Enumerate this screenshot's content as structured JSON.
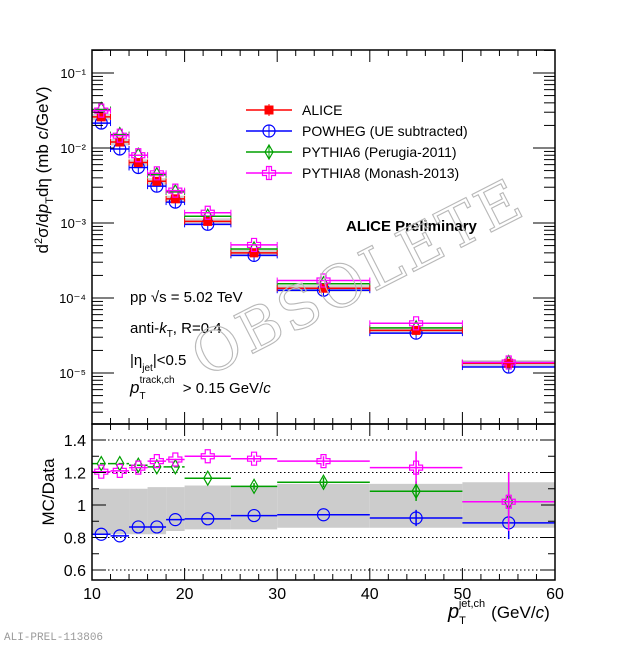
{
  "footer_id": "ALI-PREL-113806",
  "watermark": "OBSOLETE",
  "chart_data": [
    {
      "type": "scatter",
      "panel": "top",
      "ylabel": "d²σ/dp_T dη (mb c/GeV)",
      "yscale": "log",
      "ylim": [
        5e-06,
        0.12
      ],
      "xlim": [
        10,
        60
      ],
      "y_tick_labels": [
        "10⁻¹",
        "10⁻²",
        "10⁻³",
        "10⁻⁴",
        "10⁻⁵"
      ],
      "y_tick_values": [
        0.1,
        0.01,
        0.001,
        0.0001,
        1e-05
      ],
      "annotation_title": "ALICE Preliminary",
      "annotations": [
        "pp √s = 5.02 TeV",
        "anti-k_T, R=0.4",
        "|η_jet|<0.5",
        "p_T^track,ch > 0.15 GeV/c"
      ],
      "legend_position": "top-right",
      "bins": [
        [
          10,
          12
        ],
        [
          12,
          14
        ],
        [
          14,
          16
        ],
        [
          16,
          18
        ],
        [
          18,
          20
        ],
        [
          20,
          25
        ],
        [
          25,
          30
        ],
        [
          30,
          40
        ],
        [
          40,
          50
        ],
        [
          50,
          60
        ]
      ],
      "x": [
        11,
        13,
        15,
        17,
        19,
        22.5,
        27.5,
        35,
        45,
        55
      ],
      "series": [
        {
          "name": "ALICE",
          "color": "#ff0000",
          "marker": "filled-square",
          "values": [
            0.026,
            0.012,
            0.0064,
            0.0036,
            0.0021,
            0.00105,
            0.0004,
            0.000135,
            3.7e-05,
            1.35e-05
          ]
        },
        {
          "name": "POWHEG (UE subtracted)",
          "color": "#0000ff",
          "marker": "open-circle-plus",
          "values": [
            0.0215,
            0.0097,
            0.0055,
            0.0031,
            0.0019,
            0.00096,
            0.00037,
            0.000127,
            3.4e-05,
            1.2e-05
          ]
        },
        {
          "name": "PYTHIA6 (Perugia-2011)",
          "color": "#00a000",
          "marker": "open-diamond",
          "values": [
            0.0326,
            0.0151,
            0.008,
            0.0044,
            0.0026,
            0.00123,
            0.00045,
            0.000155,
            4e-05,
            1.38e-05
          ]
        },
        {
          "name": "PYTHIA8 (Monash-2013)",
          "color": "#ff00ff",
          "marker": "open-cross",
          "values": [
            0.0315,
            0.0146,
            0.008,
            0.0046,
            0.0027,
            0.00137,
            0.00051,
            0.000171,
            4.6e-05,
            1.38e-05
          ]
        }
      ]
    },
    {
      "type": "scatter",
      "panel": "bottom",
      "ylabel": "MC/Data",
      "xlabel": "p_T^jet,ch (GeV/c)",
      "xlim": [
        10,
        60
      ],
      "ylim": [
        0.52,
        1.5
      ],
      "x_tick_labels": [
        "10",
        "20",
        "30",
        "40",
        "50",
        "60"
      ],
      "x_tick_values": [
        10,
        20,
        30,
        40,
        50,
        60
      ],
      "y_tick_labels": [
        "0.6",
        "0.8",
        "1",
        "1.2",
        "1.4"
      ],
      "y_tick_values": [
        0.6,
        0.8,
        1.0,
        1.2,
        1.4
      ],
      "grid_lines": [
        0.6,
        0.8,
        1.2,
        1.4
      ],
      "bins": [
        [
          10,
          12
        ],
        [
          12,
          14
        ],
        [
          14,
          16
        ],
        [
          16,
          18
        ],
        [
          18,
          20
        ],
        [
          20,
          25
        ],
        [
          25,
          30
        ],
        [
          30,
          40
        ],
        [
          40,
          50
        ],
        [
          50,
          60
        ]
      ],
      "x": [
        11,
        13,
        15,
        17,
        19,
        22.5,
        27.5,
        35,
        45,
        55
      ],
      "data_uncertainty": [
        [
          0.82,
          1.1
        ],
        [
          0.82,
          1.1
        ],
        [
          0.82,
          1.1
        ],
        [
          0.82,
          1.11
        ],
        [
          0.84,
          1.11
        ],
        [
          0.85,
          1.12
        ],
        [
          0.85,
          1.12
        ],
        [
          0.86,
          1.13
        ],
        [
          0.86,
          1.13
        ],
        [
          0.86,
          1.14
        ]
      ],
      "series": [
        {
          "name": "POWHEG (UE subtracted)",
          "color": "#0000ff",
          "marker": "open-circle",
          "values": [
            0.82,
            0.81,
            0.865,
            0.865,
            0.91,
            0.915,
            0.935,
            0.94,
            0.92,
            0.89
          ],
          "errors": [
            0,
            0,
            0,
            0,
            0,
            0,
            0,
            0,
            0.05,
            0.1
          ]
        },
        {
          "name": "PYTHIA6 (Perugia-2011)",
          "color": "#00a000",
          "marker": "open-diamond",
          "values": [
            1.255,
            1.255,
            1.245,
            1.235,
            1.235,
            1.165,
            1.115,
            1.14,
            1.085,
            1.02
          ],
          "errors": [
            0,
            0,
            0,
            0,
            0,
            0,
            0.02,
            0.03,
            0.06,
            0.18
          ]
        },
        {
          "name": "PYTHIA8 (Monash-2013)",
          "color": "#ff00ff",
          "marker": "open-cross",
          "values": [
            1.205,
            1.21,
            1.23,
            1.27,
            1.28,
            1.3,
            1.285,
            1.27,
            1.23,
            1.02
          ],
          "errors": [
            0,
            0,
            0,
            0,
            0,
            0,
            0.02,
            0.03,
            0.1,
            0.18
          ]
        }
      ]
    }
  ]
}
